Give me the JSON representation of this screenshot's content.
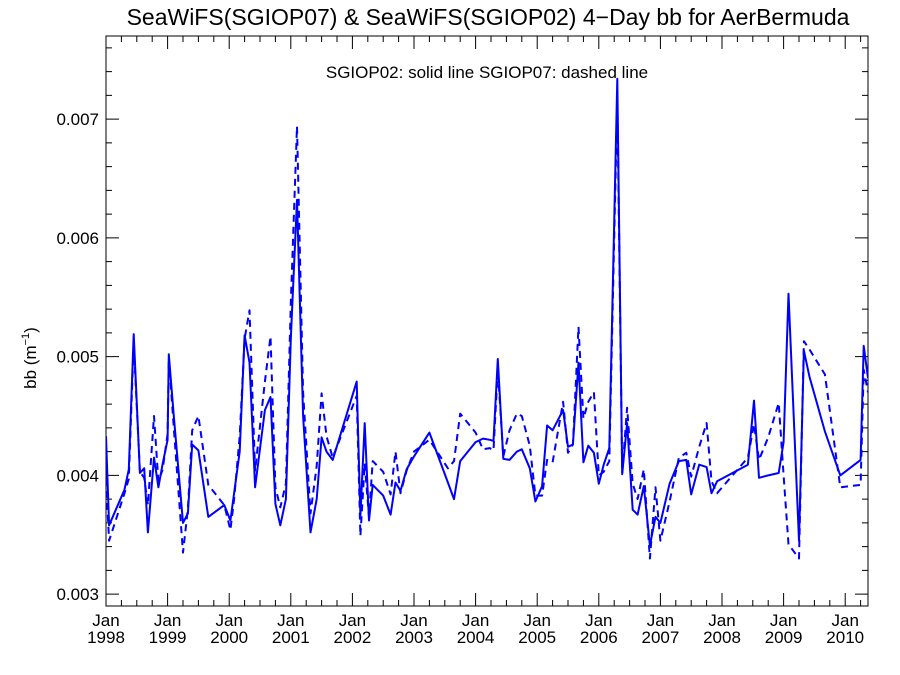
{
  "chart_data": {
    "type": "line",
    "title": "SeaWiFS(SGIOP07) & SeaWiFS(SGIOP02) 4−Day bb for AerBermuda",
    "annotation": "SGIOP02: solid line   SGIOP07: dashed line",
    "ylabel": "bb (m",
    "ylabel_sup": "−1",
    "ylabel_end": ")",
    "ylim": [
      0.0029,
      0.0077
    ],
    "xlim": [
      1998.0,
      2010.37
    ],
    "y_ticks": [
      {
        "value": 0.003,
        "label": "0.003"
      },
      {
        "value": 0.004,
        "label": "0.004"
      },
      {
        "value": 0.005,
        "label": "0.005"
      },
      {
        "value": 0.006,
        "label": "0.006"
      },
      {
        "value": 0.007,
        "label": "0.007"
      }
    ],
    "x_ticks": [
      {
        "value": 1998,
        "month": "Jan",
        "year": "1998"
      },
      {
        "value": 1999,
        "month": "Jan",
        "year": "1999"
      },
      {
        "value": 2000,
        "month": "Jan",
        "year": "2000"
      },
      {
        "value": 2001,
        "month": "Jan",
        "year": "2001"
      },
      {
        "value": 2002,
        "month": "Jan",
        "year": "2002"
      },
      {
        "value": 2003,
        "month": "Jan",
        "year": "2003"
      },
      {
        "value": 2004,
        "month": "Jan",
        "year": "2004"
      },
      {
        "value": 2005,
        "month": "Jan",
        "year": "2005"
      },
      {
        "value": 2006,
        "month": "Jan",
        "year": "2006"
      },
      {
        "value": 2007,
        "month": "Jan",
        "year": "2007"
      },
      {
        "value": 2008,
        "month": "Jan",
        "year": "2008"
      },
      {
        "value": 2009,
        "month": "Jan",
        "year": "2009"
      },
      {
        "value": 2010,
        "month": "Jan",
        "year": "2010"
      }
    ],
    "line_color": "#0000ff",
    "grid": false,
    "series": [
      {
        "style": "solid",
        "points": [
          [
            1998.0,
            0.00433
          ],
          [
            1998.05,
            0.00358
          ],
          [
            1998.3,
            0.00388
          ],
          [
            1998.37,
            0.00405
          ],
          [
            1998.45,
            0.00519
          ],
          [
            1998.55,
            0.00402
          ],
          [
            1998.62,
            0.00406
          ],
          [
            1998.68,
            0.00352
          ],
          [
            1998.78,
            0.00415
          ],
          [
            1998.85,
            0.0039
          ],
          [
            1998.92,
            0.0041
          ],
          [
            1999.0,
            0.0043
          ],
          [
            1999.02,
            0.00502
          ],
          [
            1999.1,
            0.0045
          ],
          [
            1999.25,
            0.0036
          ],
          [
            1999.33,
            0.00368
          ],
          [
            1999.4,
            0.00426
          ],
          [
            1999.5,
            0.00421
          ],
          [
            1999.66,
            0.00365
          ],
          [
            1999.92,
            0.00375
          ],
          [
            2000.02,
            0.00362
          ],
          [
            2000.08,
            0.00385
          ],
          [
            2000.17,
            0.0042
          ],
          [
            2000.25,
            0.00518
          ],
          [
            2000.33,
            0.00495
          ],
          [
            2000.42,
            0.0039
          ],
          [
            2000.58,
            0.00455
          ],
          [
            2000.67,
            0.00466
          ],
          [
            2000.75,
            0.00376
          ],
          [
            2000.83,
            0.00358
          ],
          [
            2000.92,
            0.0038
          ],
          [
            2001.0,
            0.00515
          ],
          [
            2001.1,
            0.00632
          ],
          [
            2001.2,
            0.0045
          ],
          [
            2001.32,
            0.00352
          ],
          [
            2001.42,
            0.0038
          ],
          [
            2001.5,
            0.00432
          ],
          [
            2001.58,
            0.0042
          ],
          [
            2001.68,
            0.00413
          ],
          [
            2002.07,
            0.00479
          ],
          [
            2002.13,
            0.00366
          ],
          [
            2002.2,
            0.00444
          ],
          [
            2002.27,
            0.00362
          ],
          [
            2002.33,
            0.00392
          ],
          [
            2002.5,
            0.00383
          ],
          [
            2002.62,
            0.00367
          ],
          [
            2002.7,
            0.00394
          ],
          [
            2002.78,
            0.00387
          ],
          [
            2002.88,
            0.00405
          ],
          [
            2003.0,
            0.00416
          ],
          [
            2003.25,
            0.00436
          ],
          [
            2003.55,
            0.00394
          ],
          [
            2003.65,
            0.0038
          ],
          [
            2003.75,
            0.00412
          ],
          [
            2004.0,
            0.00428
          ],
          [
            2004.12,
            0.00431
          ],
          [
            2004.23,
            0.0043
          ],
          [
            2004.29,
            0.00429
          ],
          [
            2004.36,
            0.00498
          ],
          [
            2004.45,
            0.00414
          ],
          [
            2004.55,
            0.00413
          ],
          [
            2004.67,
            0.0042
          ],
          [
            2004.75,
            0.00422
          ],
          [
            2004.88,
            0.00406
          ],
          [
            2004.97,
            0.00378
          ],
          [
            2005.08,
            0.00391
          ],
          [
            2005.16,
            0.00442
          ],
          [
            2005.25,
            0.00438
          ],
          [
            2005.42,
            0.00455
          ],
          [
            2005.5,
            0.00424
          ],
          [
            2005.58,
            0.00426
          ],
          [
            2005.67,
            0.00495
          ],
          [
            2005.75,
            0.00411
          ],
          [
            2005.83,
            0.00425
          ],
          [
            2005.92,
            0.00419
          ],
          [
            2006.0,
            0.00393
          ],
          [
            2006.08,
            0.00409
          ],
          [
            2006.17,
            0.00423
          ],
          [
            2006.3,
            0.00734
          ],
          [
            2006.38,
            0.00401
          ],
          [
            2006.46,
            0.00444
          ],
          [
            2006.55,
            0.00371
          ],
          [
            2006.63,
            0.00367
          ],
          [
            2006.73,
            0.00391
          ],
          [
            2006.83,
            0.00341
          ],
          [
            2006.92,
            0.00365
          ],
          [
            2007.0,
            0.0036
          ],
          [
            2007.15,
            0.00393
          ],
          [
            2007.3,
            0.00412
          ],
          [
            2007.42,
            0.00413
          ],
          [
            2007.5,
            0.00384
          ],
          [
            2007.63,
            0.00409
          ],
          [
            2007.75,
            0.00407
          ],
          [
            2007.83,
            0.00385
          ],
          [
            2007.92,
            0.00395
          ],
          [
            2008.42,
            0.00409
          ],
          [
            2008.52,
            0.00463
          ],
          [
            2008.6,
            0.00398
          ],
          [
            2008.75,
            0.004
          ],
          [
            2008.92,
            0.00402
          ],
          [
            2009.0,
            0.00428
          ],
          [
            2009.08,
            0.00553
          ],
          [
            2009.25,
            0.00345
          ],
          [
            2009.33,
            0.00505
          ],
          [
            2009.42,
            0.00483
          ],
          [
            2009.67,
            0.00437
          ],
          [
            2009.92,
            0.004
          ],
          [
            2010.25,
            0.00413
          ],
          [
            2010.3,
            0.00509
          ],
          [
            2010.37,
            0.00482
          ]
        ]
      },
      {
        "style": "dashed",
        "points": [
          [
            1998.0,
            0.00397
          ],
          [
            1998.05,
            0.00345
          ],
          [
            1998.3,
            0.00385
          ],
          [
            1998.37,
            0.00397
          ],
          [
            1998.45,
            0.00512
          ],
          [
            1998.55,
            0.00403
          ],
          [
            1998.62,
            0.00398
          ],
          [
            1998.68,
            0.00375
          ],
          [
            1998.78,
            0.0045
          ],
          [
            1998.85,
            0.00395
          ],
          [
            1998.92,
            0.00405
          ],
          [
            1999.0,
            0.00435
          ],
          [
            1999.02,
            0.00499
          ],
          [
            1999.1,
            0.0044
          ],
          [
            1999.25,
            0.00335
          ],
          [
            1999.33,
            0.00372
          ],
          [
            1999.4,
            0.00438
          ],
          [
            1999.5,
            0.0045
          ],
          [
            1999.66,
            0.00392
          ],
          [
            1999.92,
            0.00375
          ],
          [
            2000.02,
            0.00354
          ],
          [
            2000.08,
            0.0038
          ],
          [
            2000.17,
            0.00433
          ],
          [
            2000.25,
            0.00515
          ],
          [
            2000.33,
            0.00539
          ],
          [
            2000.42,
            0.00404
          ],
          [
            2000.58,
            0.00479
          ],
          [
            2000.67,
            0.00517
          ],
          [
            2000.75,
            0.0039
          ],
          [
            2000.83,
            0.00373
          ],
          [
            2000.92,
            0.00393
          ],
          [
            2001.0,
            0.00545
          ],
          [
            2001.1,
            0.00694
          ],
          [
            2001.2,
            0.0047
          ],
          [
            2001.32,
            0.00368
          ],
          [
            2001.42,
            0.00408
          ],
          [
            2001.5,
            0.00469
          ],
          [
            2001.58,
            0.00433
          ],
          [
            2001.68,
            0.00415
          ],
          [
            2002.07,
            0.00467
          ],
          [
            2002.13,
            0.00349
          ],
          [
            2002.2,
            0.0041
          ],
          [
            2002.27,
            0.00365
          ],
          [
            2002.33,
            0.00412
          ],
          [
            2002.5,
            0.00403
          ],
          [
            2002.62,
            0.00384
          ],
          [
            2002.7,
            0.0042
          ],
          [
            2002.78,
            0.00385
          ],
          [
            2002.88,
            0.00404
          ],
          [
            2003.0,
            0.0042
          ],
          [
            2003.25,
            0.0043
          ],
          [
            2003.55,
            0.00406
          ],
          [
            2003.65,
            0.00412
          ],
          [
            2003.75,
            0.00452
          ],
          [
            2004.0,
            0.00436
          ],
          [
            2004.12,
            0.00422
          ],
          [
            2004.23,
            0.00423
          ],
          [
            2004.29,
            0.00421
          ],
          [
            2004.36,
            0.0049
          ],
          [
            2004.45,
            0.00416
          ],
          [
            2004.55,
            0.00438
          ],
          [
            2004.67,
            0.00452
          ],
          [
            2004.75,
            0.0045
          ],
          [
            2004.88,
            0.00425
          ],
          [
            2004.97,
            0.00383
          ],
          [
            2005.08,
            0.00383
          ],
          [
            2005.16,
            0.00413
          ],
          [
            2005.25,
            0.00411
          ],
          [
            2005.42,
            0.00462
          ],
          [
            2005.5,
            0.00419
          ],
          [
            2005.58,
            0.00426
          ],
          [
            2005.67,
            0.00525
          ],
          [
            2005.75,
            0.00448
          ],
          [
            2005.83,
            0.00462
          ],
          [
            2005.92,
            0.0047
          ],
          [
            2006.0,
            0.004
          ],
          [
            2006.08,
            0.00403
          ],
          [
            2006.17,
            0.00412
          ],
          [
            2006.3,
            0.00718
          ],
          [
            2006.38,
            0.00402
          ],
          [
            2006.46,
            0.00457
          ],
          [
            2006.55,
            0.00393
          ],
          [
            2006.63,
            0.0038
          ],
          [
            2006.73,
            0.00405
          ],
          [
            2006.83,
            0.0033
          ],
          [
            2006.92,
            0.0039
          ],
          [
            2007.0,
            0.00345
          ],
          [
            2007.15,
            0.00378
          ],
          [
            2007.3,
            0.00415
          ],
          [
            2007.42,
            0.00419
          ],
          [
            2007.5,
            0.00399
          ],
          [
            2007.63,
            0.00424
          ],
          [
            2007.75,
            0.00444
          ],
          [
            2007.83,
            0.00395
          ],
          [
            2007.92,
            0.00385
          ],
          [
            2008.42,
            0.00415
          ],
          [
            2008.52,
            0.00443
          ],
          [
            2008.6,
            0.00413
          ],
          [
            2008.75,
            0.00432
          ],
          [
            2008.92,
            0.00461
          ],
          [
            2009.0,
            0.004
          ],
          [
            2009.08,
            0.00342
          ],
          [
            2009.25,
            0.0033
          ],
          [
            2009.33,
            0.00513
          ],
          [
            2009.42,
            0.00506
          ],
          [
            2009.67,
            0.00485
          ],
          [
            2009.92,
            0.0039
          ],
          [
            2010.25,
            0.00392
          ],
          [
            2010.3,
            0.00489
          ],
          [
            2010.37,
            0.0047
          ]
        ]
      }
    ]
  }
}
